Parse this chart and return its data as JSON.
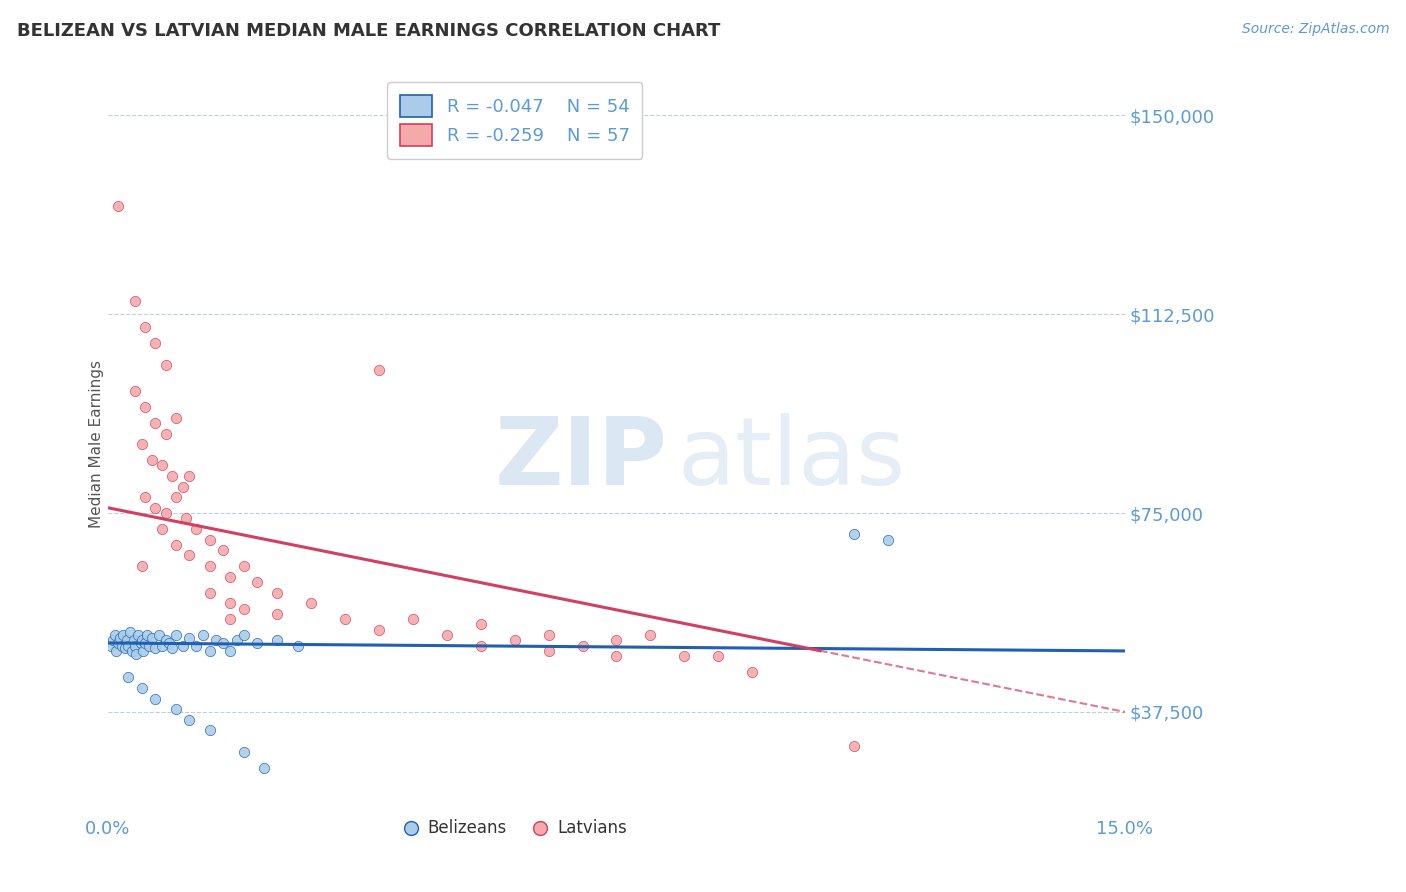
{
  "title": "BELIZEAN VS LATVIAN MEDIAN MALE EARNINGS CORRELATION CHART",
  "source": "Source: ZipAtlas.com",
  "ylabel": "Median Male Earnings",
  "yticks": [
    37500,
    75000,
    112500,
    150000
  ],
  "ytick_labels": [
    "$37,500",
    "$75,000",
    "$112,500",
    "$150,000"
  ],
  "xmin": 0.0,
  "xmax": 15.0,
  "ymin": 18000,
  "ymax": 158000,
  "blue_R": -0.047,
  "blue_N": 54,
  "pink_R": -0.259,
  "pink_N": 57,
  "blue_scatter_color": "#aacce8",
  "pink_scatter_color": "#f4aaaa",
  "trend_blue": "#2060b0",
  "trend_pink": "#d04060",
  "legend_label_blue": "Belizeans",
  "legend_label_pink": "Latvians",
  "title_color": "#333333",
  "axis_label_color": "#5b9bd5",
  "blue_trend_y0": 50500,
  "blue_trend_y1": 49000,
  "pink_trend_y0": 76000,
  "pink_trend_y1": 37500,
  "pink_dash_x0": 10.5,
  "pink_dash_x1": 15.0,
  "blue_scatter": [
    [
      0.05,
      50000
    ],
    [
      0.08,
      51000
    ],
    [
      0.1,
      52000
    ],
    [
      0.12,
      49000
    ],
    [
      0.15,
      50500
    ],
    [
      0.18,
      51500
    ],
    [
      0.2,
      50000
    ],
    [
      0.22,
      52000
    ],
    [
      0.25,
      49500
    ],
    [
      0.28,
      51000
    ],
    [
      0.3,
      50000
    ],
    [
      0.32,
      52500
    ],
    [
      0.35,
      49000
    ],
    [
      0.38,
      51000
    ],
    [
      0.4,
      50000
    ],
    [
      0.42,
      48500
    ],
    [
      0.45,
      52000
    ],
    [
      0.48,
      50500
    ],
    [
      0.5,
      51000
    ],
    [
      0.52,
      49000
    ],
    [
      0.55,
      50500
    ],
    [
      0.58,
      52000
    ],
    [
      0.6,
      50000
    ],
    [
      0.65,
      51500
    ],
    [
      0.7,
      49500
    ],
    [
      0.75,
      52000
    ],
    [
      0.8,
      50000
    ],
    [
      0.85,
      51000
    ],
    [
      0.9,
      50500
    ],
    [
      0.95,
      49500
    ],
    [
      1.0,
      52000
    ],
    [
      1.1,
      50000
    ],
    [
      1.2,
      51500
    ],
    [
      1.3,
      50000
    ],
    [
      1.4,
      52000
    ],
    [
      1.5,
      49000
    ],
    [
      1.6,
      51000
    ],
    [
      1.7,
      50500
    ],
    [
      1.8,
      49000
    ],
    [
      1.9,
      51000
    ],
    [
      2.0,
      52000
    ],
    [
      2.2,
      50500
    ],
    [
      2.5,
      51000
    ],
    [
      2.8,
      50000
    ],
    [
      0.3,
      44000
    ],
    [
      0.5,
      42000
    ],
    [
      0.7,
      40000
    ],
    [
      1.0,
      38000
    ],
    [
      1.2,
      36000
    ],
    [
      1.5,
      34000
    ],
    [
      2.0,
      30000
    ],
    [
      2.3,
      27000
    ],
    [
      11.0,
      71000
    ],
    [
      11.5,
      70000
    ]
  ],
  "pink_scatter": [
    [
      0.15,
      133000
    ],
    [
      0.4,
      115000
    ],
    [
      0.55,
      110000
    ],
    [
      0.7,
      107000
    ],
    [
      0.85,
      103000
    ],
    [
      0.4,
      98000
    ],
    [
      0.55,
      95000
    ],
    [
      0.7,
      92000
    ],
    [
      0.85,
      90000
    ],
    [
      1.0,
      93000
    ],
    [
      0.5,
      88000
    ],
    [
      0.65,
      85000
    ],
    [
      0.8,
      84000
    ],
    [
      0.95,
      82000
    ],
    [
      1.1,
      80000
    ],
    [
      1.2,
      82000
    ],
    [
      0.55,
      78000
    ],
    [
      0.7,
      76000
    ],
    [
      0.85,
      75000
    ],
    [
      1.0,
      78000
    ],
    [
      1.15,
      74000
    ],
    [
      1.3,
      72000
    ],
    [
      1.5,
      70000
    ],
    [
      1.7,
      68000
    ],
    [
      0.8,
      72000
    ],
    [
      1.0,
      69000
    ],
    [
      1.2,
      67000
    ],
    [
      1.5,
      65000
    ],
    [
      1.8,
      63000
    ],
    [
      2.0,
      65000
    ],
    [
      2.2,
      62000
    ],
    [
      2.5,
      60000
    ],
    [
      1.5,
      60000
    ],
    [
      1.8,
      58000
    ],
    [
      2.0,
      57000
    ],
    [
      2.5,
      56000
    ],
    [
      3.0,
      58000
    ],
    [
      3.5,
      55000
    ],
    [
      4.0,
      53000
    ],
    [
      4.5,
      55000
    ],
    [
      5.0,
      52000
    ],
    [
      5.5,
      54000
    ],
    [
      6.0,
      51000
    ],
    [
      6.5,
      52000
    ],
    [
      7.0,
      50000
    ],
    [
      7.5,
      51000
    ],
    [
      8.0,
      52000
    ],
    [
      5.5,
      50000
    ],
    [
      6.5,
      49000
    ],
    [
      7.5,
      48000
    ],
    [
      8.5,
      48000
    ],
    [
      9.0,
      48000
    ],
    [
      9.5,
      45000
    ],
    [
      4.0,
      102000
    ],
    [
      11.0,
      31000
    ],
    [
      0.5,
      65000
    ],
    [
      1.8,
      55000
    ]
  ]
}
